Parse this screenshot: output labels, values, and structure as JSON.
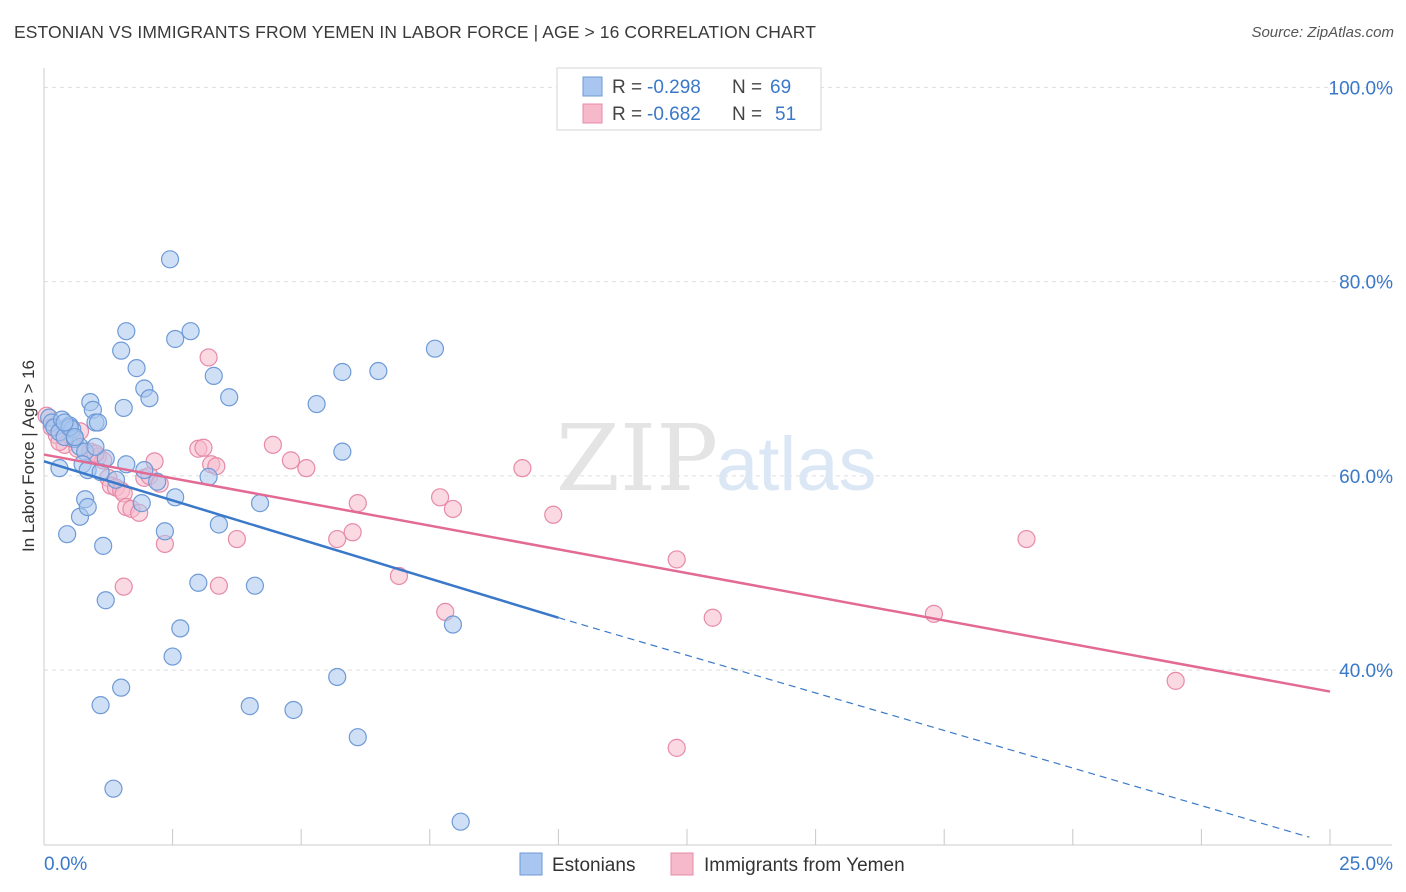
{
  "header": {
    "title": "ESTONIAN VS IMMIGRANTS FROM YEMEN IN LABOR FORCE | AGE > 16 CORRELATION CHART",
    "source": "Source: ZipAtlas.com"
  },
  "watermark": {
    "zip": "ZIP",
    "atlas": "atlas"
  },
  "colors": {
    "estonians_fill": "#a8c6ef",
    "estonians_stroke": "#6f9ad6",
    "estonians_line": "#3a78c9",
    "yemen_fill": "#f6b9cc",
    "yemen_stroke": "#e78aa8",
    "yemen_line": "#e26a95",
    "axis_label": "#3a78c9",
    "grid": "#dddddd"
  },
  "chart_data": {
    "type": "scatter",
    "title": "ESTONIAN VS IMMIGRANTS FROM YEMEN IN LABOR FORCE | AGE > 16 CORRELATION CHART",
    "xlabel": "",
    "ylabel": "In Labor Force | Age > 16",
    "xlim": [
      0,
      25
    ],
    "ylim": [
      22,
      102
    ],
    "x_tick_labels": [
      {
        "value": 0,
        "label": "0.0%"
      },
      {
        "value": 25,
        "label": "25.0%"
      }
    ],
    "y_tick_labels": [
      {
        "value": 100,
        "label": "100.0%"
      },
      {
        "value": 80,
        "label": "80.0%"
      },
      {
        "value": 60,
        "label": "60.0%"
      },
      {
        "value": 40,
        "label": "40.0%"
      }
    ],
    "legend": {
      "position": "top-center",
      "rows": [
        {
          "r_label": "R =",
          "r_value": "-0.298",
          "n_label": "N =",
          "n_value": "69"
        },
        {
          "r_label": "R =",
          "r_value": "-0.682",
          "n_label": "N =",
          "n_value": "51"
        }
      ]
    },
    "bottom_legend": [
      "Estonians",
      "Immigrants from Yemen"
    ],
    "series": [
      {
        "name": "Estonians",
        "r": -0.298,
        "n": 69,
        "trend": {
          "solid": [
            [
              0,
              61.5
            ],
            [
              10,
              45.4
            ]
          ],
          "dashed": [
            [
              10,
              45.4
            ],
            [
              24.6,
              22.8
            ]
          ]
        },
        "points": [
          [
            0.1,
            66.0
          ],
          [
            0.15,
            65.5
          ],
          [
            0.2,
            65.0
          ],
          [
            0.3,
            64.5
          ],
          [
            0.35,
            65.8
          ],
          [
            0.4,
            64.0
          ],
          [
            0.5,
            65.2
          ],
          [
            0.55,
            64.8
          ],
          [
            0.6,
            63.8
          ],
          [
            0.7,
            63.0
          ],
          [
            0.8,
            62.5
          ],
          [
            0.3,
            60.8
          ],
          [
            0.9,
            67.6
          ],
          [
            0.95,
            66.8
          ],
          [
            1.0,
            65.5
          ],
          [
            1.05,
            65.5
          ],
          [
            0.75,
            61.2
          ],
          [
            0.85,
            60.6
          ],
          [
            1.1,
            60.4
          ],
          [
            1.2,
            61.8
          ],
          [
            0.45,
            54.0
          ],
          [
            0.7,
            55.8
          ],
          [
            0.8,
            57.6
          ],
          [
            0.85,
            56.8
          ],
          [
            1.15,
            52.8
          ],
          [
            1.4,
            59.6
          ],
          [
            1.6,
            61.2
          ],
          [
            1.9,
            57.2
          ],
          [
            1.95,
            60.6
          ],
          [
            2.2,
            59.4
          ],
          [
            1.2,
            47.2
          ],
          [
            1.5,
            72.9
          ],
          [
            1.6,
            74.9
          ],
          [
            1.55,
            67.0
          ],
          [
            1.8,
            71.1
          ],
          [
            1.95,
            69.0
          ],
          [
            2.05,
            68.0
          ],
          [
            2.45,
            82.3
          ],
          [
            2.55,
            74.1
          ],
          [
            2.85,
            74.9
          ],
          [
            3.3,
            70.3
          ],
          [
            3.6,
            68.1
          ],
          [
            2.55,
            57.8
          ],
          [
            2.35,
            54.3
          ],
          [
            3.0,
            49.0
          ],
          [
            3.2,
            59.9
          ],
          [
            3.4,
            55.0
          ],
          [
            4.1,
            48.7
          ],
          [
            4.2,
            57.2
          ],
          [
            2.65,
            44.3
          ],
          [
            2.5,
            41.4
          ],
          [
            1.1,
            36.4
          ],
          [
            1.5,
            38.2
          ],
          [
            1.35,
            27.8
          ],
          [
            4.0,
            36.3
          ],
          [
            4.85,
            35.9
          ],
          [
            5.3,
            67.4
          ],
          [
            5.8,
            70.7
          ],
          [
            5.8,
            62.5
          ],
          [
            5.7,
            39.3
          ],
          [
            6.1,
            33.1
          ],
          [
            6.5,
            70.8
          ],
          [
            7.6,
            73.1
          ],
          [
            7.95,
            44.7
          ],
          [
            8.1,
            24.4
          ],
          [
            0.5,
            65.0
          ],
          [
            0.6,
            64.0
          ],
          [
            1.0,
            63.0
          ],
          [
            0.4,
            65.5
          ]
        ]
      },
      {
        "name": "Immigrants from Yemen",
        "r": -0.682,
        "n": 51,
        "trend": {
          "solid": [
            [
              0,
              62.2
            ],
            [
              25,
              37.8
            ]
          ]
        },
        "points": [
          [
            0.05,
            66.2
          ],
          [
            0.15,
            65.0
          ],
          [
            0.25,
            64.2
          ],
          [
            0.4,
            63.2
          ],
          [
            0.55,
            63.8
          ],
          [
            0.65,
            62.8
          ],
          [
            0.7,
            64.6
          ],
          [
            0.9,
            62.5
          ],
          [
            1.05,
            62.0
          ],
          [
            1.15,
            61.6
          ],
          [
            1.25,
            59.8
          ],
          [
            1.3,
            59.0
          ],
          [
            1.4,
            58.8
          ],
          [
            1.5,
            58.5
          ],
          [
            1.55,
            58.2
          ],
          [
            1.6,
            56.8
          ],
          [
            1.7,
            56.6
          ],
          [
            1.85,
            56.2
          ],
          [
            1.95,
            59.8
          ],
          [
            2.05,
            60.0
          ],
          [
            2.15,
            61.5
          ],
          [
            2.25,
            59.2
          ],
          [
            2.35,
            53.0
          ],
          [
            1.55,
            48.6
          ],
          [
            3.0,
            62.8
          ],
          [
            3.1,
            62.9
          ],
          [
            3.2,
            72.2
          ],
          [
            3.25,
            61.2
          ],
          [
            3.35,
            61.0
          ],
          [
            3.4,
            48.7
          ],
          [
            3.75,
            53.5
          ],
          [
            4.45,
            63.2
          ],
          [
            4.8,
            61.6
          ],
          [
            5.1,
            60.8
          ],
          [
            5.7,
            53.5
          ],
          [
            6.0,
            54.2
          ],
          [
            6.1,
            57.2
          ],
          [
            6.9,
            49.7
          ],
          [
            7.7,
            57.8
          ],
          [
            7.8,
            46.0
          ],
          [
            7.95,
            56.6
          ],
          [
            9.3,
            60.8
          ],
          [
            9.9,
            56.0
          ],
          [
            12.3,
            51.4
          ],
          [
            12.3,
            32.0
          ],
          [
            13.0,
            45.4
          ],
          [
            17.3,
            45.8
          ],
          [
            19.1,
            53.5
          ],
          [
            22.0,
            38.9
          ],
          [
            0.3,
            63.5
          ],
          [
            1.0,
            62.3
          ]
        ]
      }
    ]
  }
}
